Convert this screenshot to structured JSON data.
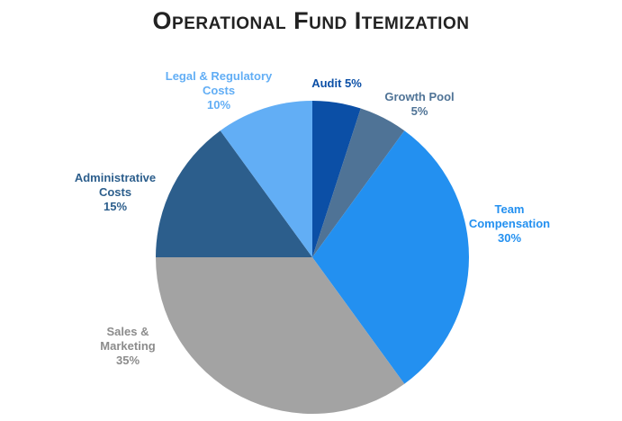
{
  "chart_data": {
    "type": "pie",
    "title": "Operational Fund Itemization",
    "slices": [
      {
        "label_lines": [
          "Audit 5%"
        ],
        "value": 5,
        "color": "#0b4fa6",
        "label_color": "#0b4fa6"
      },
      {
        "label_lines": [
          "Growth Pool",
          "5%"
        ],
        "value": 5,
        "color": "#4f7396",
        "label_color": "#4f7396"
      },
      {
        "label_lines": [
          "Team",
          "Compensation",
          "30%"
        ],
        "value": 30,
        "color": "#2390f0",
        "label_color": "#2390f0"
      },
      {
        "label_lines": [
          "Sales &",
          "Marketing",
          "35%"
        ],
        "value": 35,
        "color": "#a3a3a3",
        "label_color": "#8c8c8c"
      },
      {
        "label_lines": [
          "Administrative",
          "Costs",
          "15%"
        ],
        "value": 15,
        "color": "#2c5e8c",
        "label_color": "#2c5e8c"
      },
      {
        "label_lines": [
          "Legal & Regulatory",
          "Costs",
          "10%"
        ],
        "value": 10,
        "color": "#62aef5",
        "label_color": "#62aef5"
      }
    ],
    "start_angle_deg": 0,
    "direction": "clockwise",
    "legend": "none"
  }
}
